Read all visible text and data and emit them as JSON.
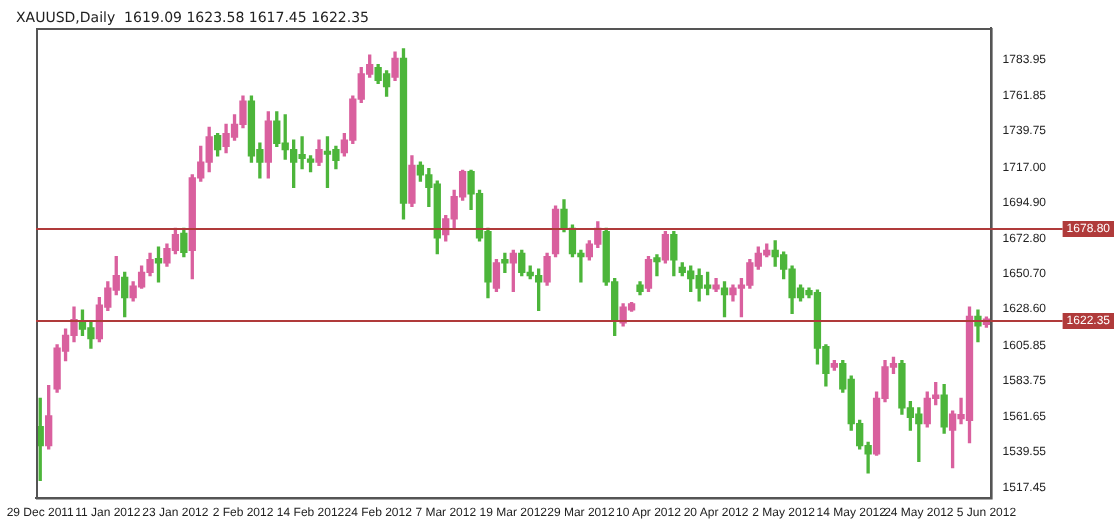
{
  "chart_data": {
    "type": "candlestick",
    "title": "XAUUSD,Daily  1619.09 1623.58 1617.45 1622.35",
    "categories": [
      "29 Dec 2011",
      null,
      null,
      null,
      null,
      null,
      null,
      null,
      "11 Jan 2012",
      null,
      null,
      null,
      null,
      null,
      null,
      null,
      "23 Jan 2012",
      null,
      null,
      null,
      null,
      null,
      null,
      null,
      "2 Feb 2012",
      null,
      null,
      null,
      null,
      null,
      null,
      null,
      "14 Feb 2012",
      null,
      null,
      null,
      null,
      null,
      null,
      null,
      "24 Feb 2012",
      null,
      null,
      null,
      null,
      null,
      null,
      null,
      "7 Mar 2012",
      null,
      null,
      null,
      null,
      null,
      null,
      null,
      "19 Mar 2012",
      null,
      null,
      null,
      null,
      null,
      null,
      null,
      "29 Mar 2012",
      null,
      null,
      null,
      null,
      null,
      null,
      null,
      "10 Apr 2012",
      null,
      null,
      null,
      null,
      null,
      null,
      null,
      "20 Apr 2012",
      null,
      null,
      null,
      null,
      null,
      null,
      null,
      "2 May 2012",
      null,
      null,
      null,
      null,
      null,
      null,
      null,
      "14 May 2012",
      null,
      null,
      null,
      null,
      null,
      null,
      null,
      "24 May 2012",
      null,
      null,
      null,
      null,
      null,
      null,
      null,
      "5 Jun 2012"
    ],
    "ohlc": [
      [
        1555.2,
        1572.9,
        1521.8,
        1543.4
      ],
      [
        1543.4,
        1580.8,
        1541.5,
        1561.9
      ],
      [
        1578.8,
        1606.3,
        1576.8,
        1604.3
      ],
      [
        1602.4,
        1616.1,
        1596.5,
        1612.2
      ],
      [
        1612.2,
        1629.9,
        1608.3,
        1622.0
      ],
      [
        1620.9,
        1627.9,
        1612.2,
        1616.1
      ],
      [
        1616.9,
        1620.1,
        1604.3,
        1610.2
      ],
      [
        1610.2,
        1635.8,
        1608.3,
        1631.1
      ],
      [
        1629.9,
        1645.6,
        1627.9,
        1641.7
      ],
      [
        1640.5,
        1661.3,
        1637.7,
        1649.5
      ],
      [
        1648.4,
        1651.5,
        1624.0,
        1635.8
      ],
      [
        1635.8,
        1645.6,
        1633.8,
        1642.9
      ],
      [
        1642.5,
        1655.4,
        1641.7,
        1651.5
      ],
      [
        1651.5,
        1663.3,
        1649.5,
        1659.4
      ],
      [
        1660.1,
        1667.2,
        1645.6,
        1657.4
      ],
      [
        1657.4,
        1669.2,
        1655.4,
        1666.4
      ],
      [
        1665.3,
        1679.0,
        1663.3,
        1675.1
      ],
      [
        1675.9,
        1679.0,
        1661.3,
        1664.1
      ],
      [
        1665.3,
        1712.4,
        1647.6,
        1710.5
      ],
      [
        1710.5,
        1730.1,
        1708.5,
        1720.3
      ],
      [
        1720.3,
        1741.9,
        1714.4,
        1736.0
      ],
      [
        1736.8,
        1738.0,
        1724.2,
        1728.1
      ],
      [
        1730.1,
        1743.9,
        1726.2,
        1738.0
      ],
      [
        1736.0,
        1749.8,
        1734.0,
        1743.9
      ],
      [
        1743.9,
        1761.5,
        1741.9,
        1758.4
      ],
      [
        1758.4,
        1761.5,
        1720.3,
        1724.2
      ],
      [
        1728.1,
        1732.1,
        1710.5,
        1720.3
      ],
      [
        1720.3,
        1751.7,
        1710.5,
        1745.8
      ],
      [
        1745.8,
        1751.7,
        1730.1,
        1732.1
      ],
      [
        1732.1,
        1749.8,
        1722.2,
        1728.1
      ],
      [
        1728.1,
        1734.0,
        1704.6,
        1720.3
      ],
      [
        1725.0,
        1736.0,
        1716.3,
        1722.6
      ],
      [
        1722.2,
        1724.2,
        1714.4,
        1720.3
      ],
      [
        1720.3,
        1734.0,
        1718.3,
        1728.1
      ],
      [
        1727.0,
        1736.0,
        1704.6,
        1725.4
      ],
      [
        1728.1,
        1730.1,
        1716.3,
        1721.5
      ],
      [
        1726.2,
        1738.0,
        1724.2,
        1734.0
      ],
      [
        1734.0,
        1761.5,
        1732.1,
        1759.6
      ],
      [
        1759.6,
        1779.2,
        1757.6,
        1775.3
      ],
      [
        1775.3,
        1787.1,
        1773.3,
        1781.2
      ],
      [
        1779.2,
        1781.2,
        1769.4,
        1771.4
      ],
      [
        1775.3,
        1777.3,
        1761.5,
        1767.4
      ],
      [
        1773.3,
        1789.0,
        1771.4,
        1785.1
      ],
      [
        1785.1,
        1791.0,
        1684.9,
        1694.7
      ],
      [
        1694.7,
        1724.2,
        1692.8,
        1718.3
      ],
      [
        1718.3,
        1720.3,
        1708.5,
        1712.4
      ],
      [
        1712.4,
        1716.3,
        1692.8,
        1704.6
      ],
      [
        1706.5,
        1708.5,
        1663.3,
        1673.1
      ],
      [
        1675.1,
        1686.9,
        1671.2,
        1684.9
      ],
      [
        1684.9,
        1702.6,
        1679.0,
        1698.7
      ],
      [
        1698.7,
        1715.2,
        1696.7,
        1714.4
      ],
      [
        1714.4,
        1715.2,
        1690.8,
        1700.6
      ],
      [
        1700.6,
        1702.6,
        1671.2,
        1673.1
      ],
      [
        1677.0,
        1679.0,
        1635.8,
        1645.6
      ],
      [
        1641.7,
        1659.4,
        1639.7,
        1657.4
      ],
      [
        1659.4,
        1663.3,
        1651.5,
        1657.4
      ],
      [
        1657.4,
        1665.3,
        1639.7,
        1663.3
      ],
      [
        1663.3,
        1665.3,
        1649.5,
        1651.5
      ],
      [
        1651.5,
        1655.4,
        1647.6,
        1649.5
      ],
      [
        1649.5,
        1653.5,
        1627.9,
        1645.6
      ],
      [
        1645.6,
        1663.3,
        1643.6,
        1661.3
      ],
      [
        1663.3,
        1692.8,
        1661.3,
        1690.8
      ],
      [
        1690.8,
        1696.7,
        1677.0,
        1679.0
      ],
      [
        1679.0,
        1681.0,
        1661.3,
        1663.3
      ],
      [
        1663.3,
        1665.3,
        1645.6,
        1661.3
      ],
      [
        1661.3,
        1671.2,
        1659.4,
        1669.2
      ],
      [
        1669.2,
        1683.0,
        1667.2,
        1679.0
      ],
      [
        1677.0,
        1679.0,
        1643.6,
        1645.6
      ],
      [
        1645.6,
        1647.6,
        1612.2,
        1620.9
      ],
      [
        1620.1,
        1631.9,
        1618.1,
        1629.9
      ],
      [
        1628.1,
        1632.7,
        1627.3,
        1631.9
      ],
      [
        1643.6,
        1645.6,
        1637.7,
        1639.7
      ],
      [
        1641.7,
        1661.3,
        1639.7,
        1659.4
      ],
      [
        1660.5,
        1662.5,
        1649.5,
        1658.2
      ],
      [
        1659.4,
        1677.0,
        1657.4,
        1675.1
      ],
      [
        1675.1,
        1677.0,
        1649.5,
        1659.4
      ],
      [
        1654.6,
        1657.4,
        1649.5,
        1651.5
      ],
      [
        1652.3,
        1655.4,
        1639.7,
        1647.6
      ],
      [
        1649.5,
        1653.5,
        1633.8,
        1641.7
      ],
      [
        1643.6,
        1651.5,
        1637.7,
        1641.7
      ],
      [
        1641.3,
        1647.6,
        1639.7,
        1643.6
      ],
      [
        1641.7,
        1645.6,
        1624.0,
        1637.7
      ],
      [
        1637.7,
        1643.6,
        1633.8,
        1641.7
      ],
      [
        1641.7,
        1647.6,
        1624.0,
        1643.6
      ],
      [
        1643.6,
        1659.4,
        1641.7,
        1657.4
      ],
      [
        1655.4,
        1667.2,
        1653.5,
        1663.3
      ],
      [
        1662.5,
        1669.2,
        1661.3,
        1665.3
      ],
      [
        1665.3,
        1671.2,
        1655.4,
        1661.3
      ],
      [
        1662.5,
        1664.1,
        1647.6,
        1653.5
      ],
      [
        1653.5,
        1655.4,
        1626.0,
        1635.8
      ],
      [
        1641.7,
        1643.6,
        1633.8,
        1635.8
      ],
      [
        1640.1,
        1641.7,
        1635.8,
        1637.7
      ],
      [
        1638.9,
        1640.5,
        1594.5,
        1604.3
      ],
      [
        1605.1,
        1606.3,
        1580.8,
        1588.6
      ],
      [
        1592.5,
        1596.5,
        1590.6,
        1594.5
      ],
      [
        1594.5,
        1596.5,
        1576.8,
        1578.8
      ],
      [
        1584.7,
        1586.7,
        1553.2,
        1557.2
      ],
      [
        1557.2,
        1559.2,
        1541.5,
        1543.4
      ],
      [
        1543.4,
        1545.4,
        1526.5,
        1538.3
      ],
      [
        1538.3,
        1576.8,
        1537.5,
        1572.9
      ],
      [
        1572.9,
        1596.5,
        1570.9,
        1592.5
      ],
      [
        1592.5,
        1598.4,
        1588.6,
        1594.5
      ],
      [
        1594.5,
        1596.5,
        1563.1,
        1567.0
      ],
      [
        1567.0,
        1570.9,
        1553.2,
        1561.1
      ],
      [
        1563.1,
        1567.0,
        1533.6,
        1557.2
      ],
      [
        1557.2,
        1576.8,
        1555.2,
        1572.9
      ],
      [
        1572.9,
        1582.7,
        1569.0,
        1574.9
      ],
      [
        1574.9,
        1581.5,
        1551.3,
        1555.2
      ],
      [
        1553.2,
        1565.0,
        1529.7,
        1563.1
      ],
      [
        1560.3,
        1572.9,
        1557.2,
        1562.7
      ],
      [
        1559.2,
        1629.9,
        1545.4,
        1624.0
      ],
      [
        1624.0,
        1627.9,
        1608.3,
        1618.1
      ],
      [
        1619.09,
        1623.58,
        1617.45,
        1622.35
      ]
    ],
    "colors": [
      "#4cb53a",
      "#d9609e",
      "#d9609e",
      "#d9609e",
      "#d9609e",
      "#4cb53a",
      "#4cb53a",
      "#d9609e",
      "#d9609e",
      "#d9609e",
      "#4cb53a",
      "#d9609e",
      "#d9609e",
      "#d9609e",
      "#4cb53a",
      "#d9609e",
      "#d9609e",
      "#4cb53a",
      "#d9609e",
      "#d9609e",
      "#d9609e",
      "#4cb53a",
      "#d9609e",
      "#d9609e",
      "#d9609e",
      "#4cb53a",
      "#4cb53a",
      "#d9609e",
      "#4cb53a",
      "#4cb53a",
      "#4cb53a",
      "#4cb53a",
      "#4cb53a",
      "#d9609e",
      "#4cb53a",
      "#4cb53a",
      "#d9609e",
      "#d9609e",
      "#d9609e",
      "#d9609e",
      "#4cb53a",
      "#4cb53a",
      "#d9609e",
      "#4cb53a",
      "#d9609e",
      "#4cb53a",
      "#4cb53a",
      "#4cb53a",
      "#d9609e",
      "#d9609e",
      "#d9609e",
      "#4cb53a",
      "#4cb53a",
      "#4cb53a",
      "#d9609e",
      "#4cb53a",
      "#d9609e",
      "#4cb53a",
      "#4cb53a",
      "#4cb53a",
      "#d9609e",
      "#d9609e",
      "#4cb53a",
      "#4cb53a",
      "#4cb53a",
      "#d9609e",
      "#d9609e",
      "#4cb53a",
      "#4cb53a",
      "#d9609e",
      "#d9609e",
      "#4cb53a",
      "#d9609e",
      "#4cb53a",
      "#d9609e",
      "#4cb53a",
      "#4cb53a",
      "#4cb53a",
      "#4cb53a",
      "#4cb53a",
      "#d9609e",
      "#4cb53a",
      "#d9609e",
      "#d9609e",
      "#d9609e",
      "#d9609e",
      "#d9609e",
      "#4cb53a",
      "#4cb53a",
      "#4cb53a",
      "#4cb53a",
      "#4cb53a",
      "#4cb53a",
      "#4cb53a",
      "#d9609e",
      "#4cb53a",
      "#4cb53a",
      "#4cb53a",
      "#4cb53a",
      "#d9609e",
      "#d9609e",
      "#d9609e",
      "#4cb53a",
      "#4cb53a",
      "#4cb53a",
      "#d9609e",
      "#d9609e",
      "#4cb53a",
      "#d9609e",
      "#d9609e",
      "#d9609e",
      "#4cb53a",
      "#d9609e"
    ],
    "ylim": [
      1511,
      1804
    ],
    "yticks": [
      {
        "value": 1517.45,
        "label": "1517.45"
      },
      {
        "value": 1539.55,
        "label": "1539.55"
      },
      {
        "value": 1561.65,
        "label": "1561.65"
      },
      {
        "value": 1583.75,
        "label": "1583.75"
      },
      {
        "value": 1605.85,
        "label": "1605.85"
      },
      {
        "value": 1628.6,
        "label": "1628.60"
      },
      {
        "value": 1650.7,
        "label": "1650.70"
      },
      {
        "value": 1672.8,
        "label": "1672.80"
      },
      {
        "value": 1694.9,
        "label": "1694.90"
      },
      {
        "value": 1717,
        "label": "1717.00"
      },
      {
        "value": 1739.75,
        "label": "1739.75"
      },
      {
        "value": 1761.85,
        "label": "1761.85"
      },
      {
        "value": 1783.95,
        "label": "1783.95"
      }
    ],
    "ref_lines": [
      {
        "axis": "y",
        "value": 1678.8,
        "label": "1678.80",
        "color": "#b03a3a"
      },
      {
        "axis": "y",
        "value": 1622.35,
        "label": "1622.35",
        "color": "#b03a3a"
      }
    ],
    "grid": false,
    "legend": false
  }
}
